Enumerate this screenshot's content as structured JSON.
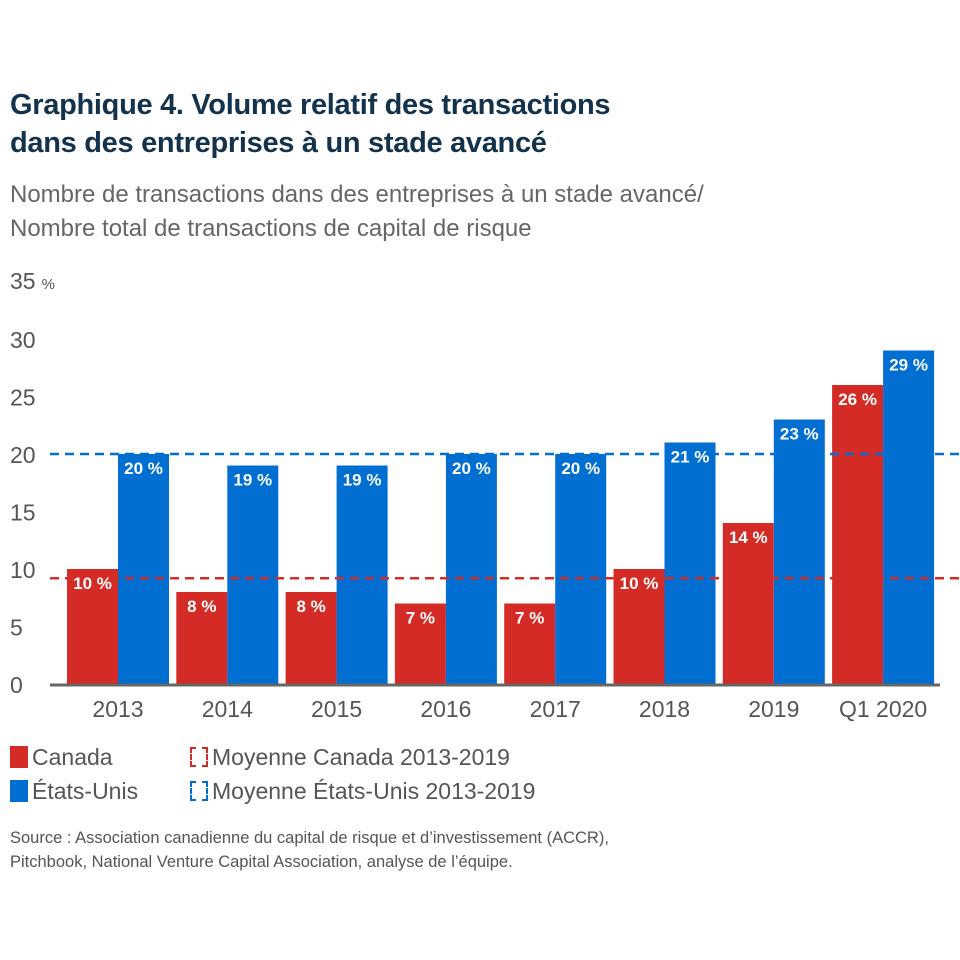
{
  "title_lines": [
    "Graphique 4. Volume relatif des transactions",
    "dans des entreprises à un stade avancé"
  ],
  "subtitle_lines": [
    "Nombre de transactions dans des entreprises à un stade avancé/",
    "Nombre total de transactions de capital de risque"
  ],
  "unit_label": "35",
  "unit_symbol": "%",
  "legend": {
    "canada": "Canada",
    "us": "États-Unis",
    "canada_avg": "Moyenne Canada 2013-2019",
    "us_avg": "Moyenne États-Unis 2013-2019"
  },
  "source_lines": [
    "Source : Association canadienne du capital de risque et d’investissement (ACCR),",
    "Pitchbook, National Venture Capital Association, analyse de l’équipe."
  ],
  "colors": {
    "canada": "#d52b26",
    "us": "#006fd1",
    "axis": "#666666",
    "tick_text": "#555555",
    "title": "#13324b"
  },
  "chart_data": {
    "type": "bar",
    "title": "Graphique 4. Volume relatif des transactions dans des entreprises à un stade avancé",
    "subtitle": "Nombre de transactions dans des entreprises à un stade avancé/Nombre total de transactions de capital de risque",
    "xlabel": "",
    "ylabel": "%",
    "ylim": [
      0,
      35
    ],
    "yticks": [
      0,
      5,
      10,
      15,
      20,
      25,
      30,
      35
    ],
    "grid": false,
    "legend_position": "bottom-left",
    "categories": [
      "2013",
      "2014",
      "2015",
      "2016",
      "2017",
      "2018",
      "2019",
      "Q1 2020"
    ],
    "series": [
      {
        "name": "Canada",
        "values": [
          10,
          8,
          8,
          7,
          7,
          10,
          14,
          26
        ],
        "labels": [
          "10 %",
          "8 %",
          "8 %",
          "7 %",
          "7 %",
          "10 %",
          "14 %",
          "26 %"
        ]
      },
      {
        "name": "États-Unis",
        "values": [
          20,
          19,
          19,
          20,
          20,
          21,
          23,
          29
        ],
        "labels": [
          "20 %",
          "19 %",
          "19 %",
          "20 %",
          "20 %",
          "21 %",
          "23 %",
          "29 %"
        ]
      }
    ],
    "reference_lines": [
      {
        "name": "Moyenne Canada 2013-2019",
        "value": 9.2,
        "style": "dashed"
      },
      {
        "name": "Moyenne États-Unis 2013-2019",
        "value": 20,
        "style": "dashed"
      }
    ]
  }
}
